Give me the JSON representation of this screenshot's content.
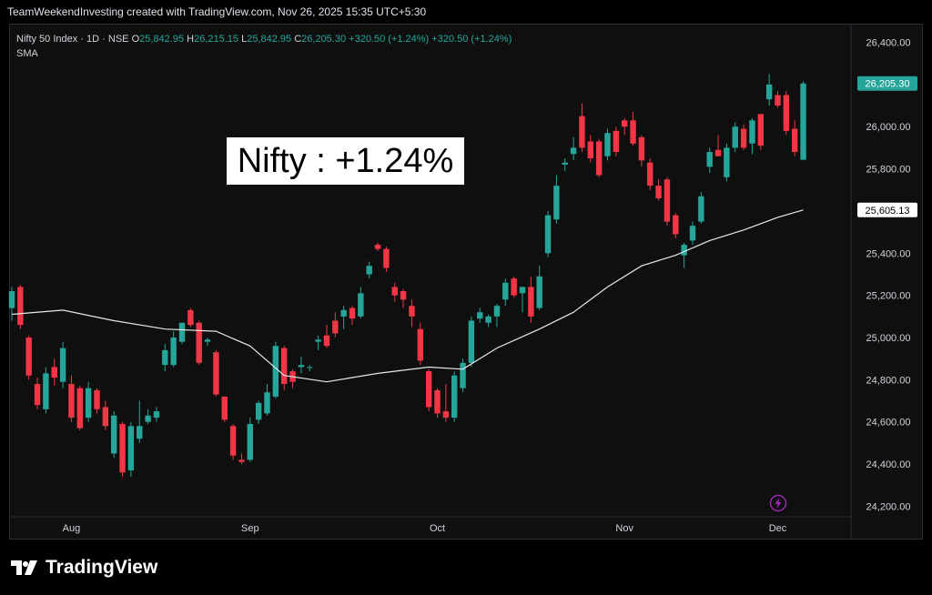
{
  "header_text": "TeamWeekendInvesting created with TradingView.com, Nov 26, 2025 15:35 UTC+5:30",
  "legend": {
    "symbol": "Nifty 50 Index · 1D · NSE",
    "o_label": "O",
    "o": "25,842.95",
    "h_label": "H",
    "h": "26,215.15",
    "l_label": "L",
    "l": "25,842.95",
    "c_label": "C",
    "c": "26,205.30",
    "chg": "+320.50 (+1.24%)",
    "chg2": "+320.50 (+1.24%)",
    "indicator": "SMA"
  },
  "annotation": "Nifty : +1.24%",
  "brand": "TradingView",
  "icons": {
    "logo": "tradingview-logo-icon",
    "flash": "lightning-icon"
  },
  "colors": {
    "up": "#26a69a",
    "down": "#f23645",
    "sma": "#e8e8e8",
    "last_price": "#26a69a"
  },
  "chart_data": {
    "type": "candlestick",
    "ylim": [
      24150,
      26480
    ],
    "y_ticks": [
      24200,
      24400,
      24600,
      24800,
      25000,
      25200,
      25400,
      25600,
      25800,
      26000,
      26200,
      26400
    ],
    "y_tick_labels": [
      "24,200.00",
      "24,400.00",
      "24,600.00",
      "24,800.00",
      "25,000.00",
      "25,200.00",
      "25,400.00",
      "25,600.00",
      "25,800.00",
      "26,000.00",
      "26,200.00",
      "26,400.00"
    ],
    "x_labels": [
      {
        "label": "Aug",
        "index": 7
      },
      {
        "label": "Sep",
        "index": 28
      },
      {
        "label": "Oct",
        "index": 50
      },
      {
        "label": "Nov",
        "index": 72
      },
      {
        "label": "Dec",
        "index": 90
      }
    ],
    "last_price_label": "26,205.30",
    "sma_label": "25,605.13",
    "candles": [
      {
        "o": 25140,
        "h": 25240,
        "l": 25080,
        "c": 25220
      },
      {
        "o": 25240,
        "h": 25250,
        "l": 25040,
        "c": 25060
      },
      {
        "o": 25000,
        "h": 25010,
        "l": 24800,
        "c": 24820
      },
      {
        "o": 24780,
        "h": 24810,
        "l": 24660,
        "c": 24680
      },
      {
        "o": 24660,
        "h": 24860,
        "l": 24640,
        "c": 24830
      },
      {
        "o": 24860,
        "h": 24900,
        "l": 24770,
        "c": 24810
      },
      {
        "o": 24790,
        "h": 24980,
        "l": 24760,
        "c": 24950
      },
      {
        "o": 24780,
        "h": 24820,
        "l": 24600,
        "c": 24620
      },
      {
        "o": 24760,
        "h": 24770,
        "l": 24560,
        "c": 24570
      },
      {
        "o": 24620,
        "h": 24790,
        "l": 24600,
        "c": 24760
      },
      {
        "o": 24750,
        "h": 24760,
        "l": 24640,
        "c": 24660
      },
      {
        "o": 24670,
        "h": 24700,
        "l": 24560,
        "c": 24580
      },
      {
        "o": 24450,
        "h": 24650,
        "l": 24430,
        "c": 24630
      },
      {
        "o": 24590,
        "h": 24600,
        "l": 24340,
        "c": 24360
      },
      {
        "o": 24370,
        "h": 24600,
        "l": 24340,
        "c": 24580
      },
      {
        "o": 24520,
        "h": 24700,
        "l": 24500,
        "c": 24580
      },
      {
        "o": 24600,
        "h": 24660,
        "l": 24590,
        "c": 24630
      },
      {
        "o": 24620,
        "h": 24670,
        "l": 24600,
        "c": 24650
      },
      {
        "o": 24870,
        "h": 24970,
        "l": 24840,
        "c": 24940
      },
      {
        "o": 24870,
        "h": 25030,
        "l": 24860,
        "c": 25000
      },
      {
        "o": 24980,
        "h": 25060,
        "l": 24970,
        "c": 25070
      },
      {
        "o": 25130,
        "h": 25140,
        "l": 25050,
        "c": 25060
      },
      {
        "o": 25070,
        "h": 25080,
        "l": 24870,
        "c": 24880
      },
      {
        "o": 24980,
        "h": 25000,
        "l": 24960,
        "c": 24990
      },
      {
        "o": 24930,
        "h": 24940,
        "l": 24720,
        "c": 24730
      },
      {
        "o": 24720,
        "h": 24720,
        "l": 24600,
        "c": 24610
      },
      {
        "o": 24580,
        "h": 24590,
        "l": 24420,
        "c": 24440
      },
      {
        "o": 24420,
        "h": 24450,
        "l": 24400,
        "c": 24410
      },
      {
        "o": 24420,
        "h": 24620,
        "l": 24410,
        "c": 24590
      },
      {
        "o": 24610,
        "h": 24700,
        "l": 24590,
        "c": 24690
      },
      {
        "o": 24640,
        "h": 24780,
        "l": 24630,
        "c": 24740
      },
      {
        "o": 24720,
        "h": 24980,
        "l": 24710,
        "c": 24960
      },
      {
        "o": 24950,
        "h": 24960,
        "l": 24750,
        "c": 24780
      },
      {
        "o": 24840,
        "h": 24850,
        "l": 24760,
        "c": 24790
      },
      {
        "o": 24860,
        "h": 24910,
        "l": 24830,
        "c": 24870
      },
      {
        "o": 24860,
        "h": 24870,
        "l": 24840,
        "c": 24860
      },
      {
        "o": 24980,
        "h": 25010,
        "l": 24940,
        "c": 24990
      },
      {
        "o": 25010,
        "h": 25060,
        "l": 24950,
        "c": 24960
      },
      {
        "o": 25080,
        "h": 25120,
        "l": 25000,
        "c": 25020
      },
      {
        "o": 25100,
        "h": 25150,
        "l": 25040,
        "c": 25130
      },
      {
        "o": 25140,
        "h": 25150,
        "l": 25060,
        "c": 25090
      },
      {
        "o": 25100,
        "h": 25240,
        "l": 25090,
        "c": 25210
      },
      {
        "o": 25300,
        "h": 25360,
        "l": 25280,
        "c": 25340
      },
      {
        "o": 25440,
        "h": 25450,
        "l": 25410,
        "c": 25420
      },
      {
        "o": 25420,
        "h": 25430,
        "l": 25310,
        "c": 25330
      },
      {
        "o": 25240,
        "h": 25260,
        "l": 25170,
        "c": 25200
      },
      {
        "o": 25220,
        "h": 25230,
        "l": 25140,
        "c": 25180
      },
      {
        "o": 25150,
        "h": 25180,
        "l": 25050,
        "c": 25100
      },
      {
        "o": 25040,
        "h": 25070,
        "l": 24870,
        "c": 24890
      },
      {
        "o": 24840,
        "h": 24850,
        "l": 24650,
        "c": 24670
      },
      {
        "o": 24750,
        "h": 24760,
        "l": 24620,
        "c": 24640
      },
      {
        "o": 24650,
        "h": 24780,
        "l": 24600,
        "c": 24620
      },
      {
        "o": 24620,
        "h": 24840,
        "l": 24600,
        "c": 24820
      },
      {
        "o": 24760,
        "h": 24900,
        "l": 24740,
        "c": 24880
      },
      {
        "o": 24880,
        "h": 25100,
        "l": 24860,
        "c": 25080
      },
      {
        "o": 25090,
        "h": 25140,
        "l": 25070,
        "c": 25120
      },
      {
        "o": 25070,
        "h": 25110,
        "l": 25050,
        "c": 25100
      },
      {
        "o": 25100,
        "h": 25160,
        "l": 25050,
        "c": 25150
      },
      {
        "o": 25180,
        "h": 25280,
        "l": 25150,
        "c": 25260
      },
      {
        "o": 25280,
        "h": 25290,
        "l": 25190,
        "c": 25200
      },
      {
        "o": 25210,
        "h": 25240,
        "l": 25120,
        "c": 25240
      },
      {
        "o": 25240,
        "h": 25290,
        "l": 25070,
        "c": 25100
      },
      {
        "o": 25140,
        "h": 25340,
        "l": 25130,
        "c": 25290
      },
      {
        "o": 25400,
        "h": 25600,
        "l": 25380,
        "c": 25580
      },
      {
        "o": 25560,
        "h": 25770,
        "l": 25540,
        "c": 25720
      },
      {
        "o": 25820,
        "h": 25850,
        "l": 25790,
        "c": 25830
      },
      {
        "o": 25870,
        "h": 25950,
        "l": 25840,
        "c": 25900
      },
      {
        "o": 26050,
        "h": 26110,
        "l": 25880,
        "c": 25900
      },
      {
        "o": 25930,
        "h": 25960,
        "l": 25830,
        "c": 25850
      },
      {
        "o": 25930,
        "h": 25940,
        "l": 25760,
        "c": 25770
      },
      {
        "o": 25860,
        "h": 25990,
        "l": 25840,
        "c": 25970
      },
      {
        "o": 25980,
        "h": 26000,
        "l": 25860,
        "c": 25880
      },
      {
        "o": 26030,
        "h": 26040,
        "l": 25960,
        "c": 26000
      },
      {
        "o": 26030,
        "h": 26070,
        "l": 25910,
        "c": 25920
      },
      {
        "o": 25950,
        "h": 25960,
        "l": 25810,
        "c": 25840
      },
      {
        "o": 25830,
        "h": 25850,
        "l": 25700,
        "c": 25720
      },
      {
        "o": 25720,
        "h": 25750,
        "l": 25650,
        "c": 25660
      },
      {
        "o": 25750,
        "h": 25760,
        "l": 25530,
        "c": 25550
      },
      {
        "o": 25580,
        "h": 25590,
        "l": 25470,
        "c": 25490
      },
      {
        "o": 25390,
        "h": 25450,
        "l": 25330,
        "c": 25440
      },
      {
        "o": 25460,
        "h": 25550,
        "l": 25440,
        "c": 25530
      },
      {
        "o": 25550,
        "h": 25690,
        "l": 25540,
        "c": 25670
      },
      {
        "o": 25810,
        "h": 25900,
        "l": 25780,
        "c": 25880
      },
      {
        "o": 25890,
        "h": 25960,
        "l": 25860,
        "c": 25860
      },
      {
        "o": 25760,
        "h": 25920,
        "l": 25740,
        "c": 25900
      },
      {
        "o": 25900,
        "h": 26020,
        "l": 25880,
        "c": 26000
      },
      {
        "o": 25990,
        "h": 26010,
        "l": 25890,
        "c": 25900
      },
      {
        "o": 25920,
        "h": 26040,
        "l": 25870,
        "c": 26030
      },
      {
        "o": 26060,
        "h": 26060,
        "l": 25890,
        "c": 25910
      },
      {
        "o": 26130,
        "h": 26250,
        "l": 26100,
        "c": 26200
      },
      {
        "o": 26150,
        "h": 26170,
        "l": 26090,
        "c": 26100
      },
      {
        "o": 26150,
        "h": 26170,
        "l": 25960,
        "c": 25980
      },
      {
        "o": 25990,
        "h": 26030,
        "l": 25860,
        "c": 25880
      },
      {
        "o": 25843,
        "h": 26215,
        "l": 25843,
        "c": 26205
      }
    ],
    "sma": [
      {
        "i": 0,
        "v": 25110
      },
      {
        "i": 6,
        "v": 25130
      },
      {
        "i": 12,
        "v": 25080
      },
      {
        "i": 18,
        "v": 25040
      },
      {
        "i": 24,
        "v": 25030
      },
      {
        "i": 28,
        "v": 24960
      },
      {
        "i": 32,
        "v": 24820
      },
      {
        "i": 37,
        "v": 24790
      },
      {
        "i": 43,
        "v": 24830
      },
      {
        "i": 49,
        "v": 24860
      },
      {
        "i": 53,
        "v": 24850
      },
      {
        "i": 57,
        "v": 24950
      },
      {
        "i": 62,
        "v": 25040
      },
      {
        "i": 66,
        "v": 25120
      },
      {
        "i": 70,
        "v": 25240
      },
      {
        "i": 74,
        "v": 25340
      },
      {
        "i": 78,
        "v": 25390
      },
      {
        "i": 82,
        "v": 25460
      },
      {
        "i": 86,
        "v": 25510
      },
      {
        "i": 90,
        "v": 25570
      },
      {
        "i": 93,
        "v": 25605
      }
    ]
  }
}
